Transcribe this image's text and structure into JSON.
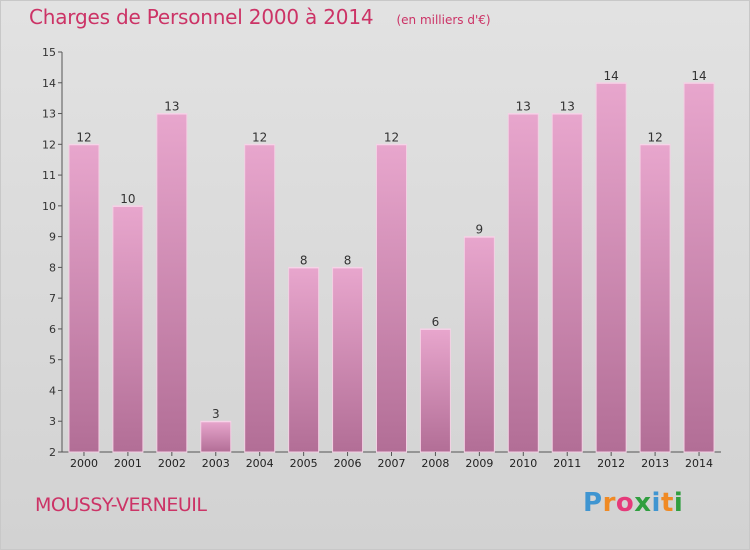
{
  "header": {
    "title": "Charges de Personnel 2000 à 2014",
    "subtitle": "(en milliers d'€)"
  },
  "footer": {
    "commune": "MOUSSY-VERNEUIL",
    "logo_text": "Proxiti"
  },
  "colors": {
    "accent": "#cc3366",
    "bar_light": "#e8a6cd",
    "bar_dark": "#b26e96"
  },
  "chart_data": {
    "type": "bar",
    "categories": [
      "2000",
      "2001",
      "2002",
      "2003",
      "2004",
      "2005",
      "2006",
      "2007",
      "2008",
      "2009",
      "2010",
      "2011",
      "2012",
      "2013",
      "2014"
    ],
    "values": [
      12,
      10,
      13,
      3,
      12,
      8,
      8,
      12,
      6,
      9,
      13,
      13,
      14,
      12,
      14
    ],
    "ylim": [
      2,
      15
    ],
    "yticks": [
      2,
      3,
      4,
      5,
      6,
      7,
      8,
      9,
      10,
      11,
      12,
      13,
      14,
      15
    ],
    "grid": false
  }
}
